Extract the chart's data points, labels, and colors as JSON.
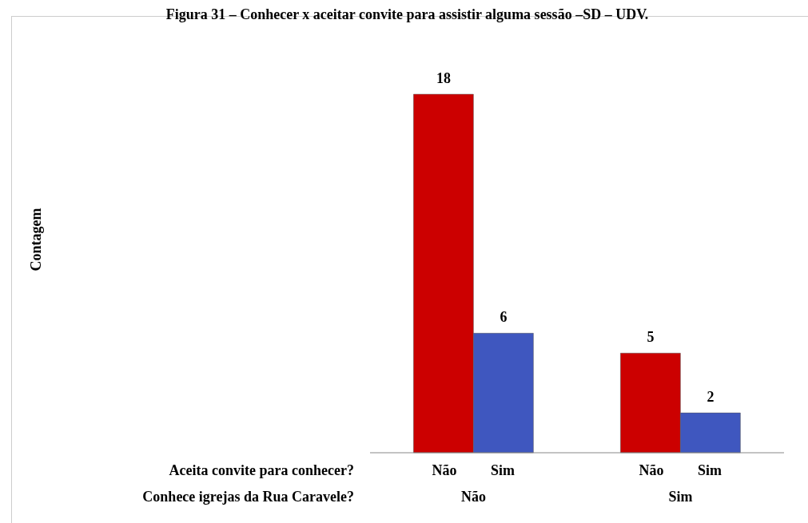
{
  "chart_data": {
    "type": "bar",
    "title": "Figura 31 – Conhecer x aceitar convite para assistir alguma sessão –SD – UDV.",
    "annotations": [
      "Contagem"
    ],
    "xlabel": "Conhece igrejas da Rua Caravele?",
    "legend_title": "Aceita convite para conhecer?",
    "categories": [
      "Não",
      "Sim"
    ],
    "series": [
      {
        "name": "Não",
        "color": "#cc0000",
        "values": [
          18,
          5
        ]
      },
      {
        "name": "Sim",
        "color": "#3f57bf",
        "values": [
          6,
          2
        ]
      }
    ],
    "data_labels": true,
    "grid": false
  }
}
